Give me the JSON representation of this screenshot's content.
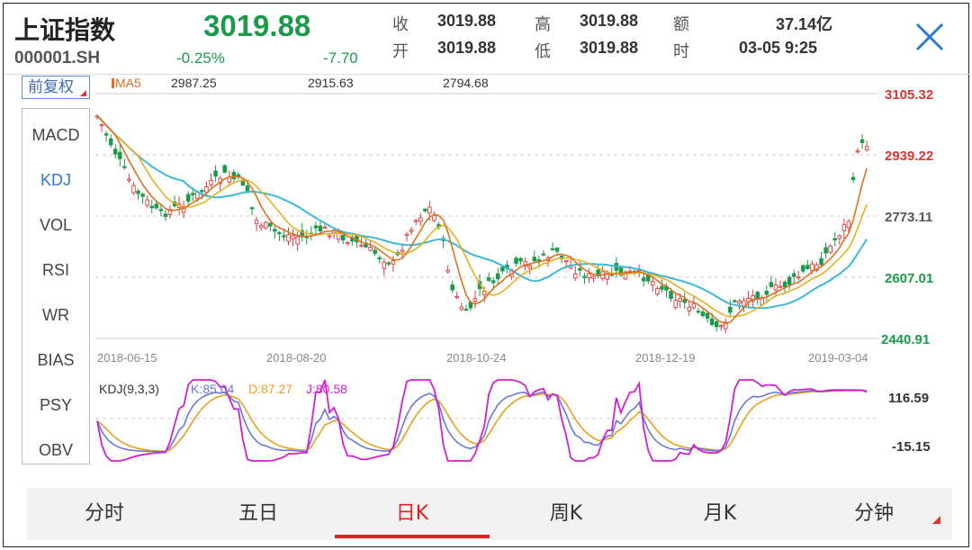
{
  "header": {
    "title": "上证指数",
    "code": "000001.SH",
    "price": "3019.88",
    "change_pct": "-0.25%",
    "change": "-7.70",
    "quotes": [
      {
        "label": "收",
        "value": "3019.88"
      },
      {
        "label": "开",
        "value": "3019.88"
      },
      {
        "label": "高",
        "value": "3019.88"
      },
      {
        "label": "低",
        "value": "3019.88"
      },
      {
        "label": "额",
        "value": "37.14亿"
      },
      {
        "label": "时",
        "value": "03-05 9:25"
      }
    ]
  },
  "toolbar": {
    "adjust_label": "前复权"
  },
  "ma": {
    "label": "MA5",
    "values": [
      "2987.25",
      "2915.63",
      "2794.68"
    ]
  },
  "indicators": [
    "MACD",
    "KDJ",
    "VOL",
    "RSI",
    "WR",
    "BIAS",
    "PSY",
    "OBV"
  ],
  "active_indicator": "KDJ",
  "price_axis": [
    "3105.32",
    "2939.22",
    "2773.11",
    "2607.01",
    "2440.91"
  ],
  "date_axis": [
    "2018-06-15",
    "2018-08-20",
    "2018-10-24",
    "2018-12-19",
    "2019-03-04"
  ],
  "kdj": {
    "label": "KDJ(9,3,3)",
    "k": "K:85.04",
    "d": "D:87.27",
    "j": "J:80.58",
    "axis": [
      "116.59",
      "-15.15"
    ]
  },
  "tabs": [
    "分时",
    "五日",
    "日K",
    "周K",
    "月K",
    "分钟"
  ],
  "active_tab": "日K",
  "colors": {
    "up": "#e03a3a",
    "down": "#1a9a4a",
    "ma5": "#e07020",
    "ma10": "#e8b020",
    "ma20": "#3db8d8",
    "k": "#6a78d8",
    "d": "#e8a020",
    "j": "#d020d0"
  }
}
